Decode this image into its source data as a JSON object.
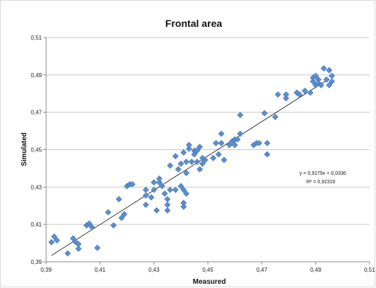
{
  "chart_data": {
    "type": "scatter",
    "title": "Frontal area",
    "xlabel": "Measured",
    "ylabel": "Simulated",
    "xlim": [
      0.39,
      0.51
    ],
    "ylim": [
      0.39,
      0.51
    ],
    "x_ticks": [
      0.39,
      0.41,
      0.43,
      0.45,
      0.47,
      0.49,
      0.51
    ],
    "y_ticks": [
      0.39,
      0.41,
      0.43,
      0.45,
      0.47,
      0.49,
      0.51
    ],
    "x_tick_labels": [
      "0,39",
      "0,41",
      "0,43",
      "0,45",
      "0,47",
      "0,49",
      "0,51"
    ],
    "y_tick_labels": [
      "0,39",
      "0,41",
      "0,43",
      "0,45",
      "0,47",
      "0,49",
      "0,51"
    ],
    "grid": "horizontal",
    "marker_color": "#5b8fcf",
    "marker_edge_color": "#3f6fb0",
    "trendline": {
      "slope": 0.9179,
      "intercept": 0.0336,
      "x_range": [
        0.392,
        0.495
      ],
      "equation_label": "y = 0,9179x + 0,0336",
      "r2_label": "R² = 0,92316"
    },
    "points": [
      [
        0.392,
        0.4005
      ],
      [
        0.393,
        0.4035
      ],
      [
        0.394,
        0.4015
      ],
      [
        0.398,
        0.3945
      ],
      [
        0.4,
        0.4025
      ],
      [
        0.401,
        0.4005
      ],
      [
        0.402,
        0.3995
      ],
      [
        0.402,
        0.397
      ],
      [
        0.405,
        0.4095
      ],
      [
        0.406,
        0.4105
      ],
      [
        0.407,
        0.4085
      ],
      [
        0.409,
        0.3975
      ],
      [
        0.413,
        0.4165
      ],
      [
        0.415,
        0.4095
      ],
      [
        0.417,
        0.4235
      ],
      [
        0.418,
        0.4135
      ],
      [
        0.419,
        0.4155
      ],
      [
        0.42,
        0.4305
      ],
      [
        0.421,
        0.4315
      ],
      [
        0.422,
        0.4315
      ],
      [
        0.427,
        0.4285
      ],
      [
        0.427,
        0.4255
      ],
      [
        0.427,
        0.4205
      ],
      [
        0.429,
        0.4245
      ],
      [
        0.43,
        0.4285
      ],
      [
        0.43,
        0.4325
      ],
      [
        0.431,
        0.4175
      ],
      [
        0.432,
        0.4325
      ],
      [
        0.432,
        0.4345
      ],
      [
        0.433,
        0.4305
      ],
      [
        0.434,
        0.4265
      ],
      [
        0.435,
        0.4235
      ],
      [
        0.435,
        0.4205
      ],
      [
        0.435,
        0.4175
      ],
      [
        0.436,
        0.4285
      ],
      [
        0.436,
        0.4415
      ],
      [
        0.438,
        0.4285
      ],
      [
        0.438,
        0.4465
      ],
      [
        0.439,
        0.4395
      ],
      [
        0.44,
        0.4305
      ],
      [
        0.44,
        0.4425
      ],
      [
        0.441,
        0.4485
      ],
      [
        0.441,
        0.4285
      ],
      [
        0.441,
        0.4215
      ],
      [
        0.441,
        0.4195
      ],
      [
        0.442,
        0.4435
      ],
      [
        0.442,
        0.4375
      ],
      [
        0.442,
        0.4265
      ],
      [
        0.443,
        0.4505
      ],
      [
        0.443,
        0.4525
      ],
      [
        0.444,
        0.4435
      ],
      [
        0.445,
        0.4495
      ],
      [
        0.445,
        0.4475
      ],
      [
        0.446,
        0.4495
      ],
      [
        0.446,
        0.4435
      ],
      [
        0.447,
        0.4515
      ],
      [
        0.447,
        0.4395
      ],
      [
        0.448,
        0.4425
      ],
      [
        0.448,
        0.4455
      ],
      [
        0.449,
        0.4445
      ],
      [
        0.452,
        0.4455
      ],
      [
        0.453,
        0.4535
      ],
      [
        0.454,
        0.4475
      ],
      [
        0.455,
        0.4585
      ],
      [
        0.455,
        0.4535
      ],
      [
        0.456,
        0.4445
      ],
      [
        0.458,
        0.4525
      ],
      [
        0.459,
        0.4545
      ],
      [
        0.46,
        0.4555
      ],
      [
        0.46,
        0.4525
      ],
      [
        0.461,
        0.4555
      ],
      [
        0.462,
        0.4585
      ],
      [
        0.462,
        0.4685
      ],
      [
        0.467,
        0.4525
      ],
      [
        0.468,
        0.4535
      ],
      [
        0.469,
        0.4535
      ],
      [
        0.471,
        0.4695
      ],
      [
        0.472,
        0.4475
      ],
      [
        0.472,
        0.4535
      ],
      [
        0.475,
        0.4675
      ],
      [
        0.476,
        0.4795
      ],
      [
        0.479,
        0.4775
      ],
      [
        0.479,
        0.4795
      ],
      [
        0.483,
        0.4805
      ],
      [
        0.484,
        0.4795
      ],
      [
        0.486,
        0.4815
      ],
      [
        0.488,
        0.4805
      ],
      [
        0.489,
        0.4865
      ],
      [
        0.489,
        0.4885
      ],
      [
        0.49,
        0.4895
      ],
      [
        0.49,
        0.4845
      ],
      [
        0.491,
        0.4875
      ],
      [
        0.491,
        0.4855
      ],
      [
        0.492,
        0.4845
      ],
      [
        0.493,
        0.4935
      ],
      [
        0.494,
        0.4875
      ],
      [
        0.495,
        0.4925
      ],
      [
        0.495,
        0.4845
      ],
      [
        0.496,
        0.4865
      ],
      [
        0.496,
        0.4895
      ]
    ]
  }
}
